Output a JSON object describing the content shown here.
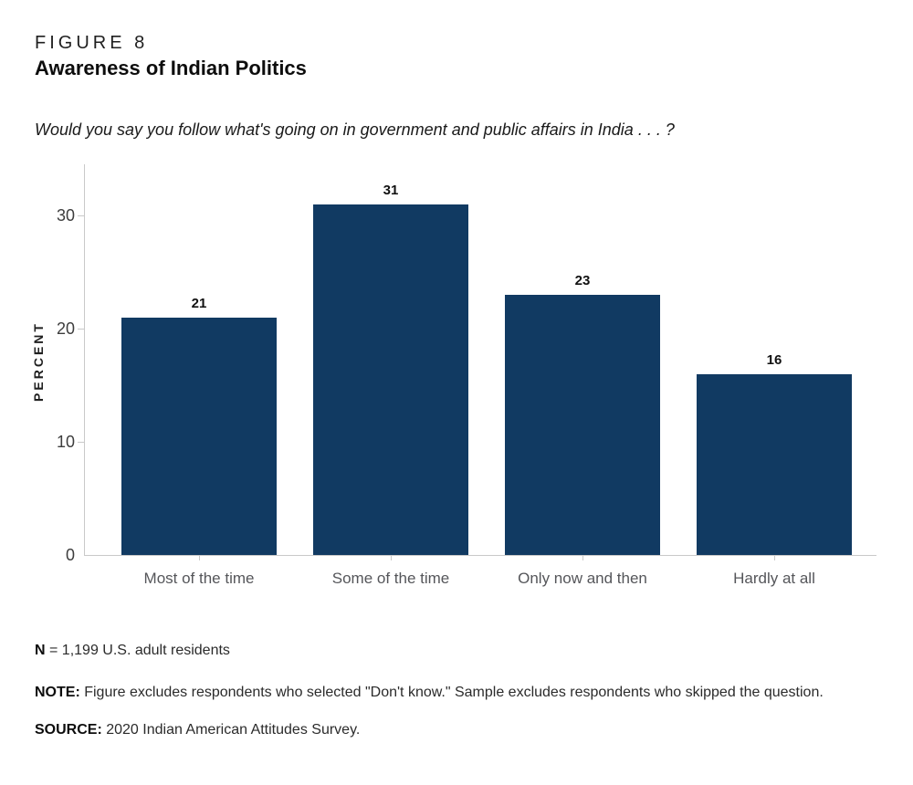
{
  "figure": {
    "label": "FIGURE 8",
    "title": "Awareness of Indian Politics",
    "question": "Would you say you follow what's going on in government and public affairs in India . . . ?"
  },
  "chart_data": {
    "type": "bar",
    "title": "Awareness of Indian Politics",
    "categories": [
      "Most of the time",
      "Some of the time",
      "Only now and then",
      "Hardly at all"
    ],
    "values": [
      21,
      31,
      23,
      16
    ],
    "xlabel": "",
    "ylabel": "PERCENT",
    "ylim": [
      0,
      34
    ],
    "yticks": [
      0,
      10,
      20,
      30
    ],
    "grid": false,
    "legend": "none",
    "value_labels_shown": true,
    "colors": {
      "bar": "#113a62",
      "axis": "#c9c9c9",
      "ytick_label": "#3d3d3d",
      "category_label": "#55565a",
      "value_label": "#111111"
    }
  },
  "footer": {
    "n_label": "N",
    "n_text": " = 1,199 U.S. adult residents",
    "note_label": "NOTE:",
    "note_text": " Figure excludes respondents who selected \"Don't know.\" Sample excludes respondents who skipped the question.",
    "source_label": "SOURCE:",
    "source_text": " 2020 Indian American Attitudes Survey."
  }
}
